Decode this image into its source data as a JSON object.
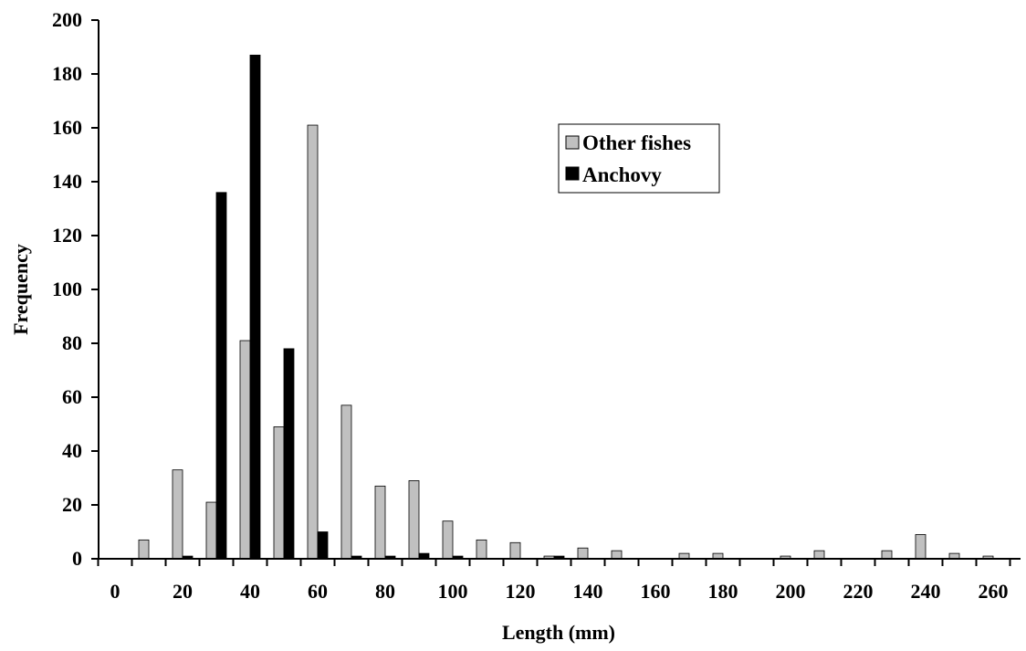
{
  "chart_data": {
    "type": "bar",
    "title": "",
    "xlabel": "Length (mm)",
    "ylabel": "Frequency",
    "ylim": [
      0,
      200
    ],
    "yticks": [
      0,
      20,
      40,
      60,
      80,
      100,
      120,
      140,
      160,
      180,
      200
    ],
    "xtick_labels": [
      "0",
      "20",
      "40",
      "60",
      "80",
      "100",
      "120",
      "140",
      "160",
      "180",
      "200",
      "220",
      "240",
      "260"
    ],
    "categories": [
      0,
      10,
      20,
      30,
      40,
      50,
      60,
      70,
      80,
      90,
      100,
      110,
      120,
      130,
      140,
      150,
      160,
      170,
      180,
      190,
      200,
      210,
      220,
      230,
      240,
      250,
      260
    ],
    "grid": false,
    "legend_position": "top-right",
    "series": [
      {
        "name": "Other fishes",
        "color": "#c0c0c0",
        "values": [
          0,
          7,
          33,
          21,
          81,
          49,
          161,
          57,
          27,
          29,
          14,
          7,
          6,
          1,
          4,
          3,
          0,
          2,
          2,
          0,
          1,
          3,
          0,
          3,
          9,
          2,
          1
        ]
      },
      {
        "name": "Anchovy",
        "color": "#000000",
        "values": [
          0,
          0,
          1,
          136,
          187,
          78,
          10,
          1,
          1,
          2,
          1,
          0,
          0,
          1,
          0,
          0,
          0,
          0,
          0,
          0,
          0,
          0,
          0,
          0,
          0,
          0,
          0
        ]
      }
    ]
  }
}
